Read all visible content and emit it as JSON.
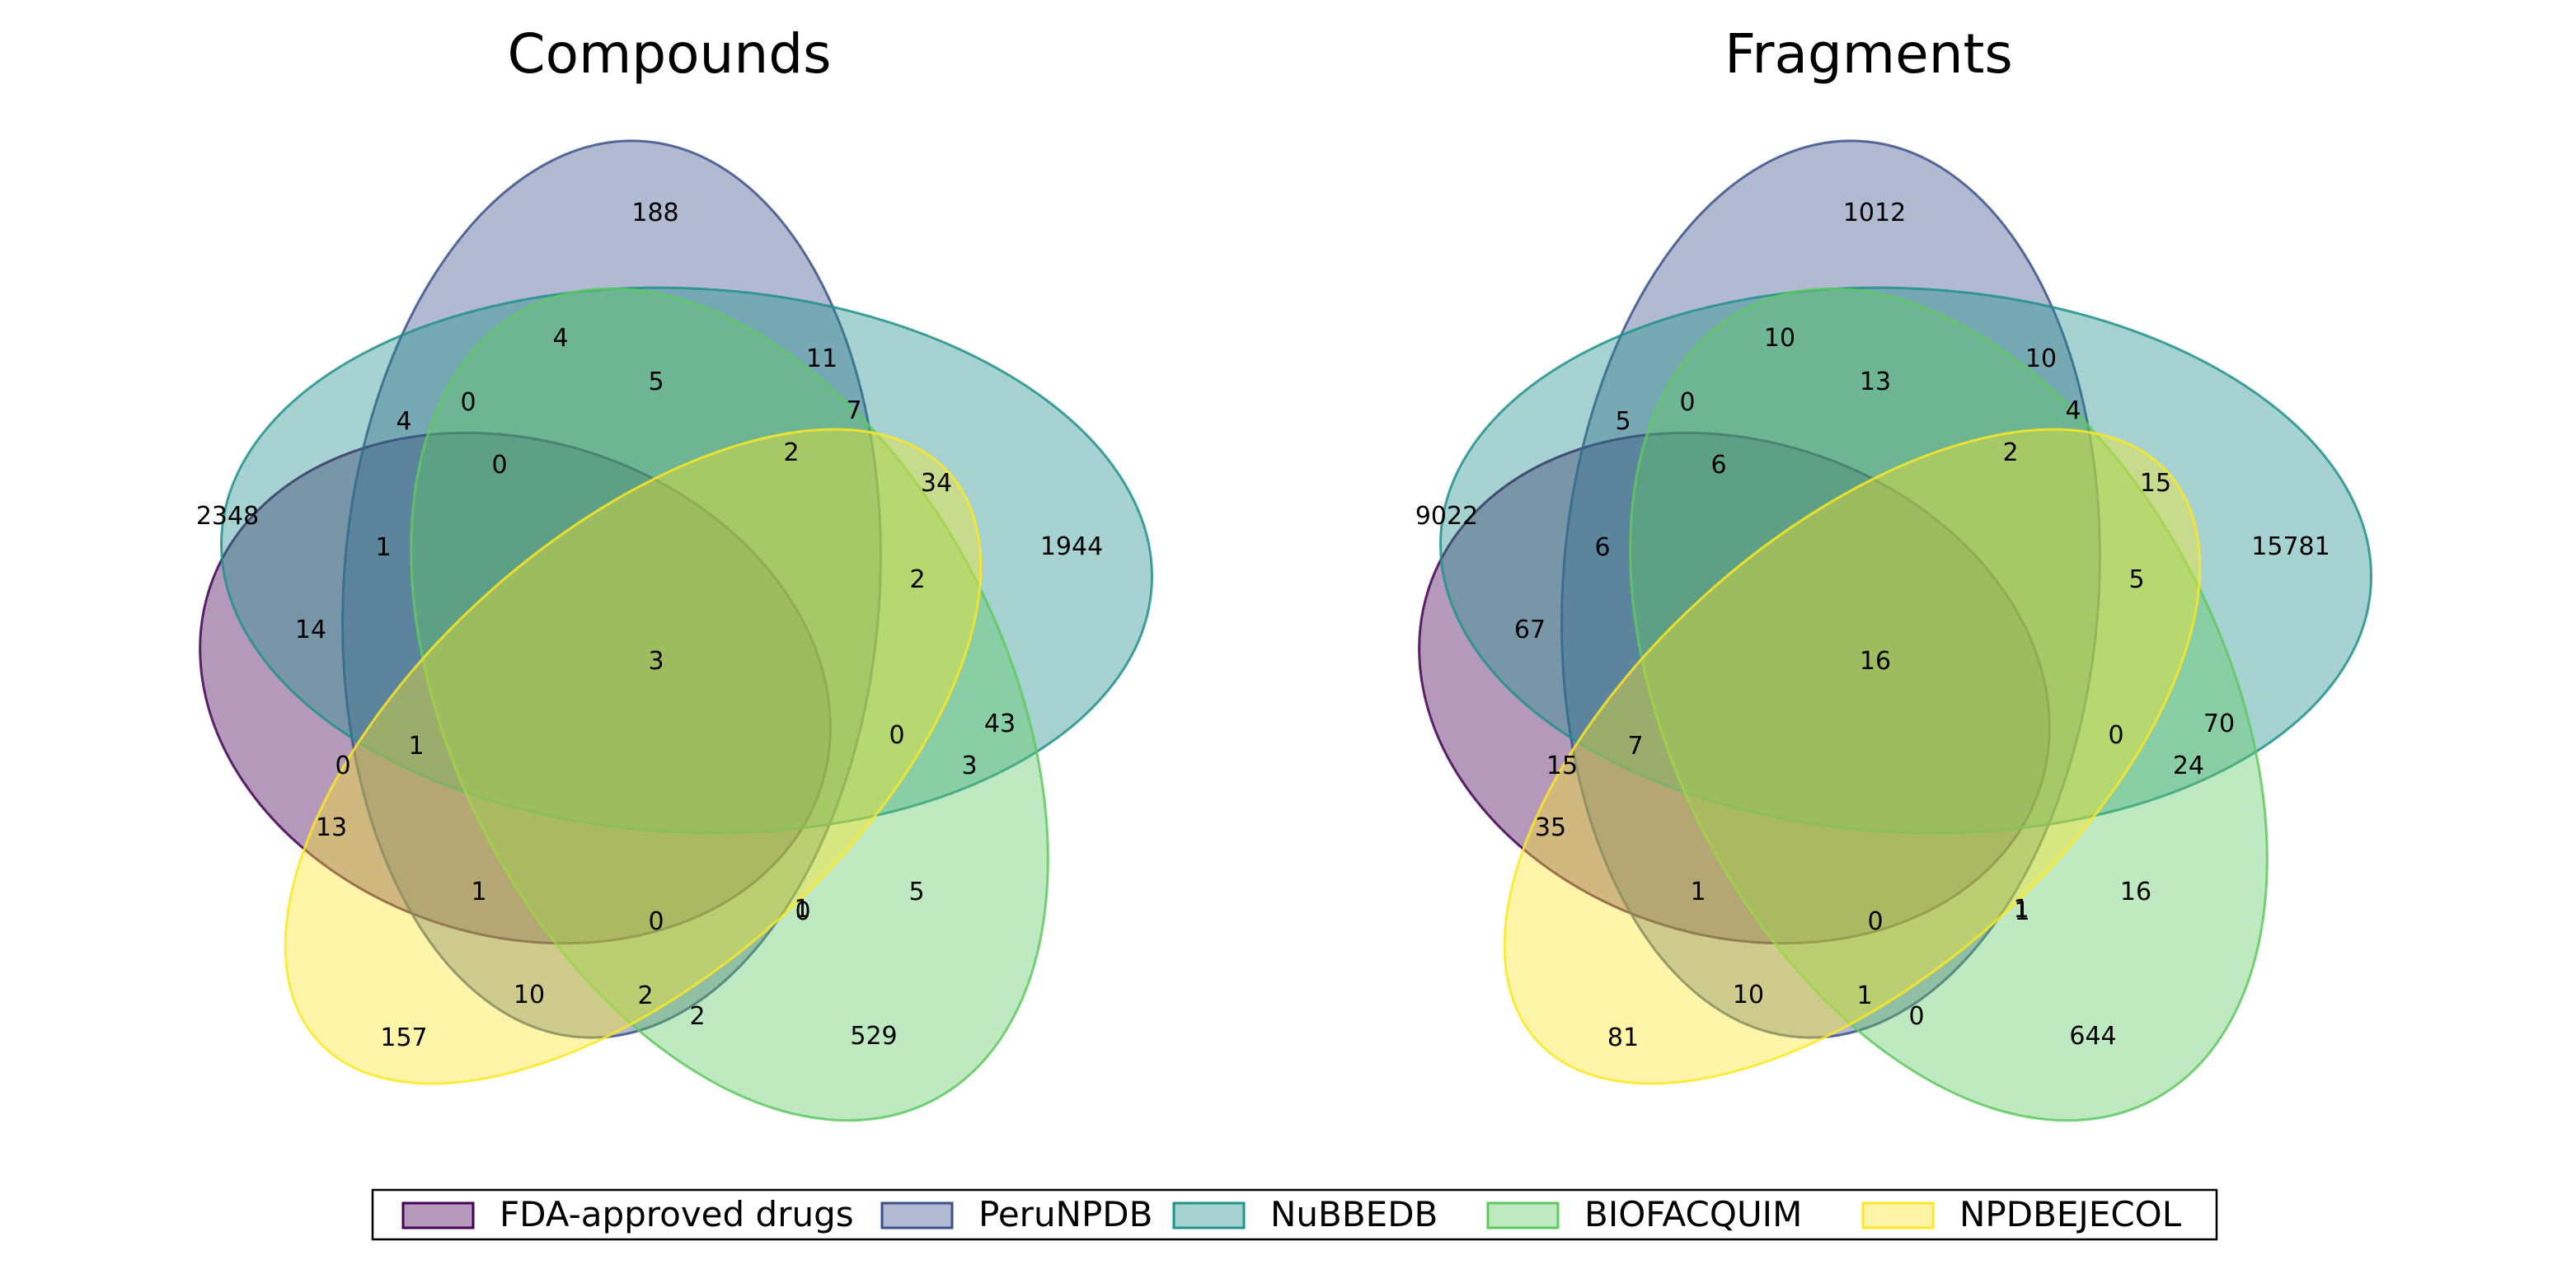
{
  "sets": [
    {
      "key": "fda",
      "name": "FDA-approved drugs",
      "fill": "#440154",
      "stroke": "#440154"
    },
    {
      "key": "peru",
      "name": "PeruNPDB",
      "fill": "#3b528b",
      "stroke": "#3b528b"
    },
    {
      "key": "nubbe",
      "name": "NuBBEDB",
      "fill": "#21918c",
      "stroke": "#21918c"
    },
    {
      "key": "biofac",
      "name": "BIOFACQUIM",
      "fill": "#5ec962",
      "stroke": "#5ec962"
    },
    {
      "key": "npdb",
      "name": "NPDBEJECOL",
      "fill": "#fde725",
      "stroke": "#fde725"
    }
  ],
  "panels": [
    {
      "title": "Compounds",
      "regions": {
        "fda_only": "2348",
        "peru_only": "188",
        "nubbe_only": "1944",
        "biofac_only": "529",
        "npdb_only": "157",
        "fda_peru": "4",
        "fda_nubbe": "14",
        "fda_biofac": "1",
        "fda_npdb": "13",
        "peru_nubbe": "11",
        "peru_biofac": "4",
        "peru_npdb": "10",
        "nubbe_biofac": "43",
        "nubbe_npdb": "34",
        "biofac_npdb": "2",
        "fda_peru_nubbe": "1",
        "fda_peru_biofac": "0",
        "fda_peru_npdb": "0",
        "fda_nubbe_biofac": "5",
        "fda_nubbe_npdb": "0",
        "fda_biofac_npdb": "2",
        "peru_nubbe_biofac": "5",
        "peru_nubbe_npdb": "7",
        "peru_biofac_npdb": "1",
        "nubbe_biofac_npdb": "2",
        "fda_peru_nubbe_biofac": "0",
        "fda_peru_nubbe_npdb": "1",
        "fda_peru_biofac_npdb": "0",
        "fda_nubbe_biofac_npdb": "3",
        "peru_nubbe_biofac_npdb": "2",
        "p_a": "0",
        "p_b": "0",
        "all": "3"
      }
    },
    {
      "title": "Fragments",
      "regions": {
        "fda_only": "9022",
        "peru_only": "1012",
        "nubbe_only": "15781",
        "biofac_only": "644",
        "npdb_only": "81",
        "fda_peru": "5",
        "fda_nubbe": "67",
        "fda_biofac": "1",
        "fda_npdb": "35",
        "peru_nubbe": "10",
        "peru_biofac": "10",
        "peru_npdb": "10",
        "nubbe_biofac": "70",
        "nubbe_npdb": "15",
        "biofac_npdb": "0",
        "fda_peru_nubbe": "6",
        "fda_peru_biofac": "0",
        "fda_peru_npdb": "15",
        "fda_nubbe_biofac": "16",
        "fda_nubbe_npdb": "1",
        "fda_biofac_npdb": "1",
        "peru_nubbe_biofac": "13",
        "peru_nubbe_npdb": "4",
        "peru_biofac_npdb": "1",
        "nubbe_biofac_npdb": "5",
        "fda_peru_nubbe_biofac": "7",
        "fda_peru_nubbe_npdb": "7",
        "fda_peru_biofac_npdb": "0",
        "fda_nubbe_biofac_npdb": "24",
        "peru_nubbe_biofac_npdb": "2",
        "p_a": "6",
        "p_b": "0",
        "all": "16"
      }
    }
  ]
}
